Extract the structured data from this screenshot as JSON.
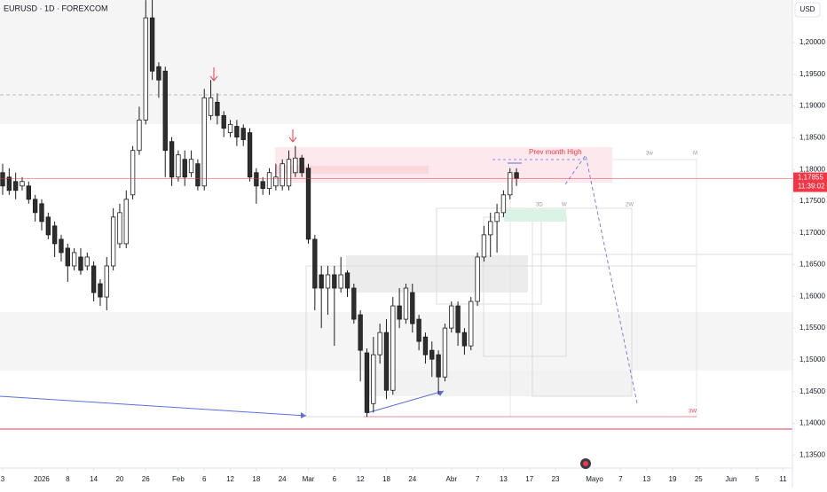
{
  "chart_data": {
    "type": "candlestick",
    "title": "EURUSD · 1D · FOREXCOM",
    "currency": "USD",
    "up_color": "#ffffff",
    "down_color": "#2e2e2e",
    "border_color": "#1c1c1c",
    "open": [
      1.1795,
      1.1788,
      1.1781,
      1.1774,
      1.1774,
      1.1753,
      1.1746,
      1.1725,
      1.1711,
      1.169,
      1.1676,
      1.1648,
      1.1662,
      1.1648,
      1.1648,
      1.162,
      1.1599,
      1.1648,
      1.1683,
      1.1683,
      1.176,
      1.183,
      1.1878,
      1.2039,
      1.1962,
      1.1955,
      1.1844,
      1.1788,
      1.1816,
      1.1795,
      1.1809,
      1.1774,
      1.1885,
      1.1906,
      1.1885,
      1.1858,
      1.1868,
      1.1865,
      1.1858,
      1.1795,
      1.1781,
      1.177,
      1.1774,
      1.1774,
      1.1774,
      1.1795,
      1.1818,
      1.1802,
      1.169,
      1.1634,
      1.1613,
      1.1634,
      1.1613,
      1.1637,
      1.1613,
      1.1571,
      1.1511,
      1.1431,
      1.1508,
      1.1543,
      1.1452,
      1.1585,
      1.1564,
      1.1606,
      1.1564,
      1.1536,
      1.1515,
      1.1508,
      1.1473,
      1.155,
      1.1585,
      1.1543,
      1.1522,
      1.1592,
      1.1662,
      1.1697,
      1.1718,
      1.1732,
      1.176,
      1.1795
    ],
    "high": [
      1.1809,
      1.1802,
      1.1795,
      1.1788,
      1.1781,
      1.176,
      1.1753,
      1.1732,
      1.1718,
      1.1697,
      1.1683,
      1.1676,
      1.1676,
      1.1669,
      1.1655,
      1.1627,
      1.1662,
      1.1739,
      1.1746,
      1.1767,
      1.1837,
      1.1899,
      1.2067,
      1.2067,
      1.1969,
      1.1962,
      1.1851,
      1.183,
      1.183,
      1.183,
      1.1816,
      1.1927,
      1.1941,
      1.192,
      1.1892,
      1.1878,
      1.1878,
      1.1871,
      1.1865,
      1.1802,
      1.1788,
      1.1802,
      1.1809,
      1.1816,
      1.183,
      1.1837,
      1.1823,
      1.1809,
      1.1697,
      1.1648,
      1.1648,
      1.1648,
      1.1662,
      1.1641,
      1.162,
      1.1578,
      1.1518,
      1.1536,
      1.1557,
      1.1564,
      1.1599,
      1.1613,
      1.162,
      1.162,
      1.1571,
      1.1543,
      1.1529,
      1.1515,
      1.1557,
      1.1592,
      1.1592,
      1.155,
      1.1599,
      1.1669,
      1.1711,
      1.1732,
      1.1746,
      1.1767,
      1.1802,
      1.1802
    ],
    "low": [
      1.176,
      1.176,
      1.1753,
      1.1767,
      1.1746,
      1.1718,
      1.1704,
      1.169,
      1.1662,
      1.1655,
      1.1623,
      1.1641,
      1.1634,
      1.1641,
      1.1592,
      1.1585,
      1.1578,
      1.1641,
      1.1676,
      1.1676,
      1.1753,
      1.1823,
      1.1871,
      1.1941,
      1.1913,
      1.1788,
      1.1774,
      1.1781,
      1.1774,
      1.1788,
      1.1767,
      1.1767,
      1.1878,
      1.1871,
      1.1851,
      1.1851,
      1.1837,
      1.1837,
      1.1781,
      1.1746,
      1.176,
      1.176,
      1.1767,
      1.1767,
      1.1767,
      1.1788,
      1.1788,
      1.1683,
      1.1578,
      1.155,
      1.1571,
      1.1522,
      1.1606,
      1.1599,
      1.1557,
      1.1466,
      1.141,
      1.1417,
      1.1494,
      1.1438,
      1.1445,
      1.155,
      1.1557,
      1.1543,
      1.1515,
      1.1494,
      1.1473,
      1.1445,
      1.1466,
      1.1543,
      1.1522,
      1.1508,
      1.1515,
      1.1585,
      1.1655,
      1.1662,
      1.1669,
      1.1725,
      1.1753,
      1.1774
    ],
    "close": [
      1.1774,
      1.1767,
      1.1767,
      1.1781,
      1.1753,
      1.1732,
      1.1718,
      1.1697,
      1.1683,
      1.1669,
      1.1648,
      1.1669,
      1.1641,
      1.1662,
      1.1606,
      1.1599,
      1.1648,
      1.1725,
      1.1732,
      1.1753,
      1.183,
      1.1878,
      1.2039,
      1.1955,
      1.1941,
      1.183,
      1.1788,
      1.1823,
      1.1788,
      1.1816,
      1.1774,
      1.1913,
      1.1913,
      1.1885,
      1.1865,
      1.1871,
      1.1851,
      1.1847,
      1.1788,
      1.1774,
      1.177,
      1.1795,
      1.1788,
      1.1809,
      1.1816,
      1.1818,
      1.1795,
      1.169,
      1.1613,
      1.1613,
      1.1634,
      1.1613,
      1.1634,
      1.1613,
      1.1564,
      1.1515,
      1.1417,
      1.1508,
      1.1543,
      1.1452,
      1.1585,
      1.1564,
      1.1613,
      1.1557,
      1.1529,
      1.1508,
      1.1501,
      1.1473,
      1.155,
      1.1585,
      1.1543,
      1.1522,
      1.1592,
      1.1662,
      1.1697,
      1.1718,
      1.1732,
      1.176,
      1.1795,
      1.1786
    ],
    "last_price": {
      "value": 1.17855,
      "label": "1,17855"
    },
    "last_price_color": "#f23645",
    "countdown": "11:39:02",
    "ylim": [
      1.13294,
      1.20671
    ],
    "yticks": [
      {
        "value": 1.135,
        "label": "1,13500"
      },
      {
        "value": 1.14,
        "label": "1,14000"
      },
      {
        "value": 1.145,
        "label": "1,14500"
      },
      {
        "value": 1.15,
        "label": "1,15000"
      },
      {
        "value": 1.155,
        "label": "1,15500"
      },
      {
        "value": 1.16,
        "label": "1,16000"
      },
      {
        "value": 1.165,
        "label": "1,16500"
      },
      {
        "value": 1.17,
        "label": "1,17000"
      },
      {
        "value": 1.175,
        "label": "1,17500"
      },
      {
        "value": 1.18,
        "label": "1,18000"
      },
      {
        "value": 1.185,
        "label": "1,18500"
      },
      {
        "value": 1.19,
        "label": "1,19000"
      },
      {
        "value": 1.195,
        "label": "1,19500"
      },
      {
        "value": 1.2,
        "label": "1,20000"
      }
    ],
    "xlim": [
      -0.41,
      121.42
    ],
    "xticks": [
      {
        "value": 0,
        "label": "3"
      },
      {
        "value": 6,
        "label": "2026"
      },
      {
        "value": 10,
        "label": "8"
      },
      {
        "value": 14,
        "label": "14"
      },
      {
        "value": 18,
        "label": "20"
      },
      {
        "value": 22,
        "label": "26"
      },
      {
        "value": 27,
        "label": "Feb"
      },
      {
        "value": 31,
        "label": "6"
      },
      {
        "value": 35,
        "label": "12"
      },
      {
        "value": 39,
        "label": "18"
      },
      {
        "value": 43,
        "label": "24"
      },
      {
        "value": 47,
        "label": "Mar"
      },
      {
        "value": 51,
        "label": "6"
      },
      {
        "value": 55,
        "label": "12"
      },
      {
        "value": 59,
        "label": "18"
      },
      {
        "value": 63,
        "label": "24"
      },
      {
        "value": 69,
        "label": "Abr"
      },
      {
        "value": 73,
        "label": "7"
      },
      {
        "value": 77,
        "label": "13"
      },
      {
        "value": 81,
        "label": "17"
      },
      {
        "value": 85,
        "label": "23"
      },
      {
        "value": 91,
        "label": "Mayo"
      },
      {
        "value": 95,
        "label": "7"
      },
      {
        "value": 99,
        "label": "13"
      },
      {
        "value": 103,
        "label": "19"
      },
      {
        "value": 107,
        "label": "25"
      },
      {
        "value": 112,
        "label": "Jun"
      },
      {
        "value": 116,
        "label": "5"
      },
      {
        "value": 120,
        "label": "11"
      }
    ],
    "grid": false,
    "annotations": {
      "prev_month_high": "Prev month High",
      "d3": "3D",
      "w": "W",
      "w2": "2W",
      "w3_top": "3w",
      "m": "M",
      "w3": "3W"
    }
  }
}
